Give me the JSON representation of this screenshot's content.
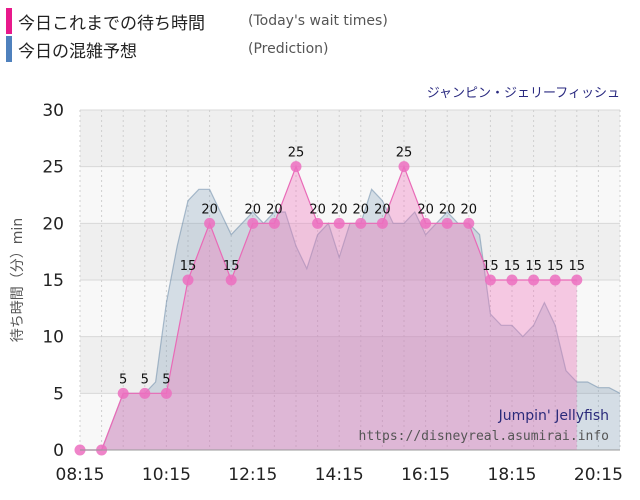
{
  "legend": [
    {
      "label": "今日これまでの待ち時間",
      "note": "(Today's wait times)",
      "color": "#e8198b"
    },
    {
      "label": "今日の混雑予想",
      "note": "(Prediction)",
      "color": "#4f81bd"
    }
  ],
  "attraction": "ジャンピン・ジェリーフィッシュ",
  "watermark": {
    "name": "Jumpin' Jellyfish",
    "url": "https://disneyreal.asumirai.info"
  },
  "chart_data": {
    "type": "area",
    "ylabel": "待ち時間（分）min",
    "ylim": [
      0,
      30
    ],
    "yticks": [
      0,
      5,
      10,
      15,
      20,
      25,
      30
    ],
    "xlim": [
      "08:15",
      "20:45"
    ],
    "xticks": [
      "08:15",
      "10:15",
      "12:15",
      "14:15",
      "16:15",
      "18:15",
      "20:15"
    ],
    "series": [
      {
        "name": "今日これまでの待ち時間",
        "color": "#e8198b",
        "x": [
          "08:15",
          "08:45",
          "09:15",
          "09:45",
          "10:15",
          "10:45",
          "11:15",
          "11:45",
          "12:15",
          "12:45",
          "13:15",
          "13:45",
          "14:15",
          "14:45",
          "15:15",
          "15:45",
          "16:15",
          "16:45",
          "17:15",
          "17:45",
          "18:15",
          "18:45",
          "19:15",
          "19:45"
        ],
        "values": [
          0,
          0,
          5,
          5,
          5,
          15,
          20,
          15,
          20,
          20,
          25,
          20,
          20,
          20,
          20,
          25,
          20,
          20,
          20,
          15,
          15,
          15,
          15,
          15
        ]
      },
      {
        "name": "今日の混雑予想",
        "color": "#4f81bd",
        "x": [
          "08:15",
          "08:45",
          "09:15",
          "09:45",
          "10:00",
          "10:15",
          "10:30",
          "10:45",
          "11:00",
          "11:15",
          "11:30",
          "11:45",
          "12:00",
          "12:15",
          "12:30",
          "12:45",
          "13:00",
          "13:15",
          "13:30",
          "13:45",
          "14:00",
          "14:15",
          "14:30",
          "14:45",
          "15:00",
          "15:15",
          "15:30",
          "15:45",
          "16:00",
          "16:15",
          "16:30",
          "16:45",
          "17:00",
          "17:15",
          "17:30",
          "17:45",
          "18:00",
          "18:15",
          "18:30",
          "18:45",
          "19:00",
          "19:15",
          "19:30",
          "19:45",
          "20:00",
          "20:15",
          "20:30",
          "20:45"
        ],
        "values": [
          0,
          0,
          5,
          5,
          6,
          13,
          18,
          22,
          23,
          23,
          21,
          19,
          20,
          21,
          20,
          21,
          21,
          18,
          16,
          19,
          20,
          17,
          20,
          20,
          23,
          22,
          20,
          20,
          21,
          19,
          20,
          21,
          20,
          20,
          19,
          12,
          11,
          11,
          10,
          11,
          13,
          11,
          7,
          6,
          6,
          5.5,
          5.5,
          5
        ]
      }
    ],
    "data_labels": [
      {
        "x": "09:15",
        "text": "5"
      },
      {
        "x": "09:45",
        "text": "5"
      },
      {
        "x": "10:15",
        "text": "5"
      },
      {
        "x": "10:45",
        "text": "15"
      },
      {
        "x": "11:15",
        "text": "20"
      },
      {
        "x": "11:45",
        "text": "15"
      },
      {
        "x": "12:15",
        "text": "20"
      },
      {
        "x": "12:45",
        "text": "20"
      },
      {
        "x": "13:15",
        "text": "25"
      },
      {
        "x": "13:45",
        "text": "20"
      },
      {
        "x": "14:15",
        "text": "20"
      },
      {
        "x": "14:45",
        "text": "20"
      },
      {
        "x": "15:15",
        "text": "20"
      },
      {
        "x": "15:45",
        "text": "25"
      },
      {
        "x": "16:15",
        "text": "20"
      },
      {
        "x": "16:45",
        "text": "20"
      },
      {
        "x": "17:15",
        "text": "20"
      },
      {
        "x": "17:45",
        "text": "15"
      },
      {
        "x": "18:15",
        "text": "15"
      },
      {
        "x": "18:45",
        "text": "15"
      },
      {
        "x": "19:15",
        "text": "15"
      },
      {
        "x": "19:45",
        "text": "15"
      }
    ],
    "grid": true
  }
}
